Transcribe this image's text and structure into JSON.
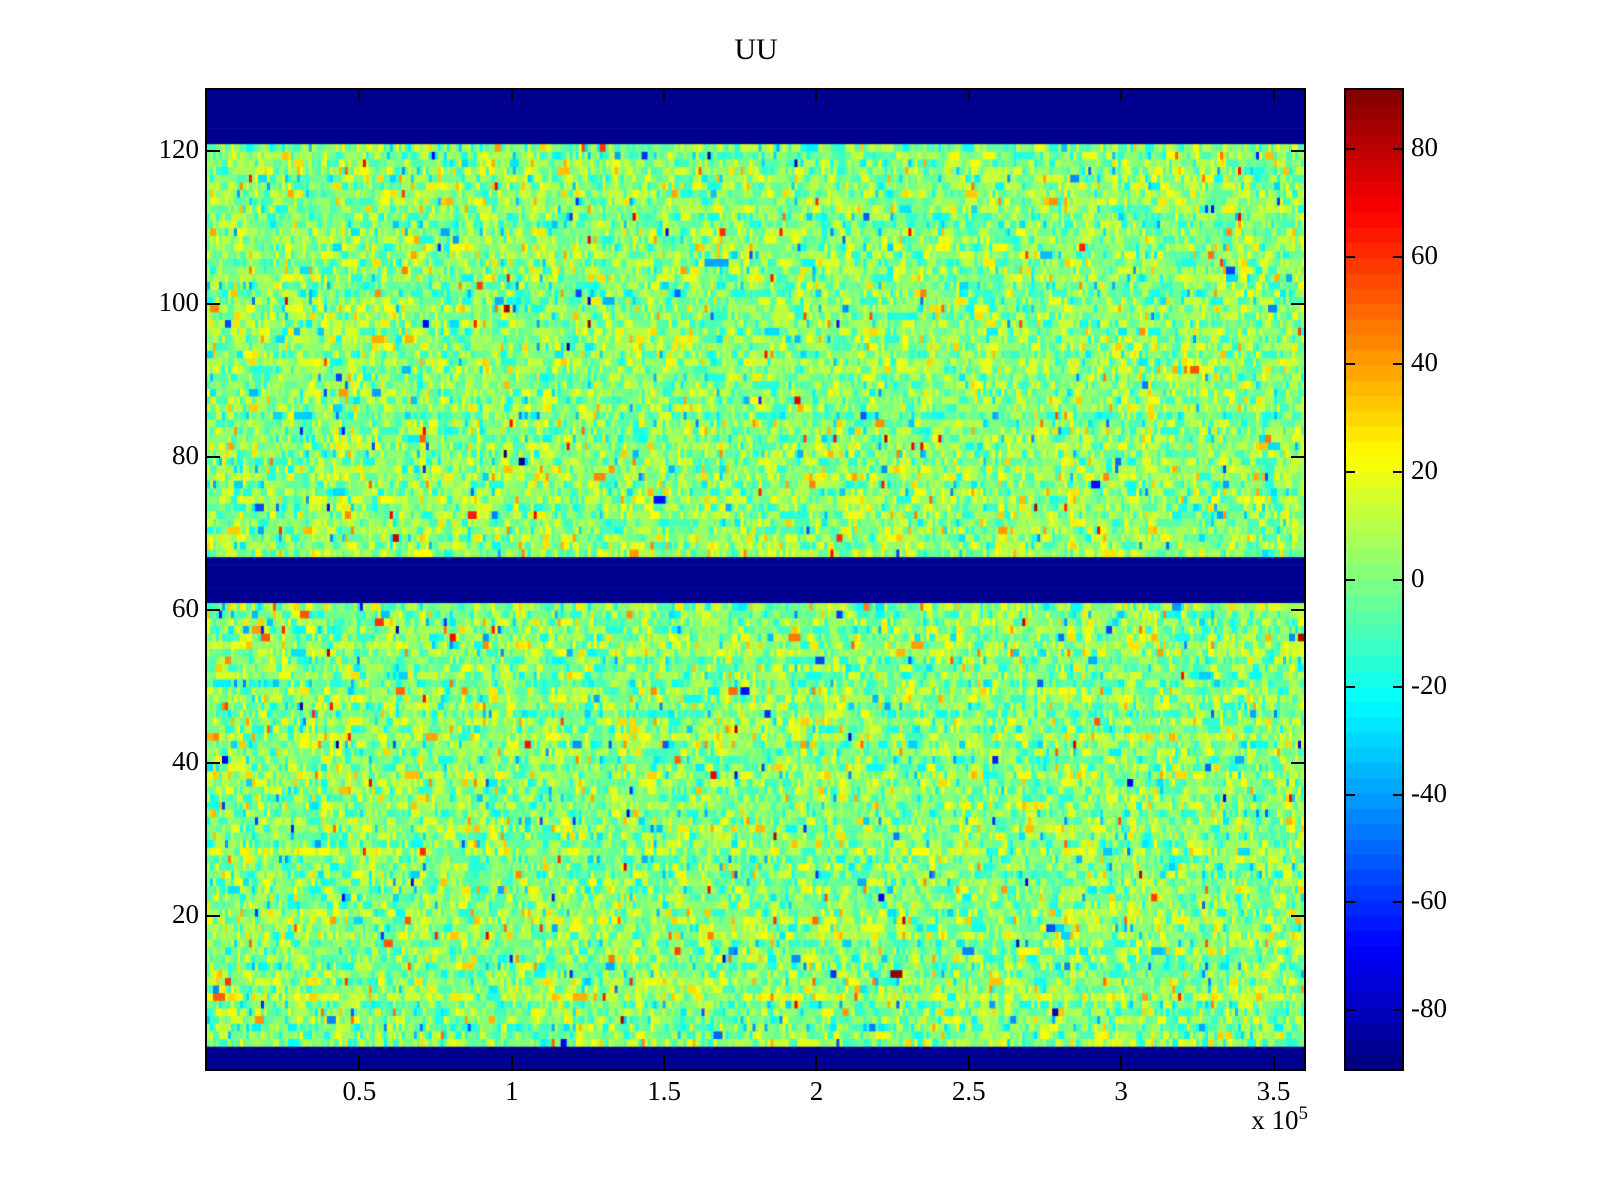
{
  "chart_data": {
    "type": "heatmap",
    "title": "UU",
    "xlabel": "",
    "ylabel": "",
    "x_exponent_prefix": "x 10",
    "x_exponent": "5",
    "x_range_1e5": [
      0,
      3.6
    ],
    "x_tick_values": [
      0.5,
      1,
      1.5,
      2,
      2.5,
      3,
      3.5
    ],
    "x_tick_labels": [
      "0.5",
      "1",
      "1.5",
      "2",
      "2.5",
      "3",
      "3.5"
    ],
    "y_range": [
      0,
      128
    ],
    "y_tick_values": [
      20,
      40,
      60,
      80,
      100,
      120
    ],
    "y_tick_labels": [
      "20",
      "40",
      "60",
      "80",
      "100",
      "120"
    ],
    "rows": 128,
    "cols": 366,
    "caxis": [
      -91,
      91
    ],
    "colormap": "jet",
    "colorbar_levels": 64,
    "colorbar_tick_values": [
      80,
      60,
      40,
      20,
      0,
      -20,
      -40,
      -60,
      -80
    ],
    "colorbar_tick_labels": [
      "80",
      "60",
      "40",
      "20",
      "0",
      "-20",
      "-40",
      "-60",
      "-80"
    ],
    "grid": false,
    "legend": "none",
    "band_color": "#000090",
    "background_color": "#ffffff",
    "min_value_bands_rows": [
      [
        122,
        128
      ],
      [
        62,
        67
      ],
      [
        1,
        3
      ]
    ],
    "noise": {
      "mean": 2,
      "std": 13,
      "outlier_prob": 0.06,
      "outlier_std": 28,
      "row_bias_std": 3,
      "repeat_prob": 0.25,
      "seed": 1234567
    }
  }
}
